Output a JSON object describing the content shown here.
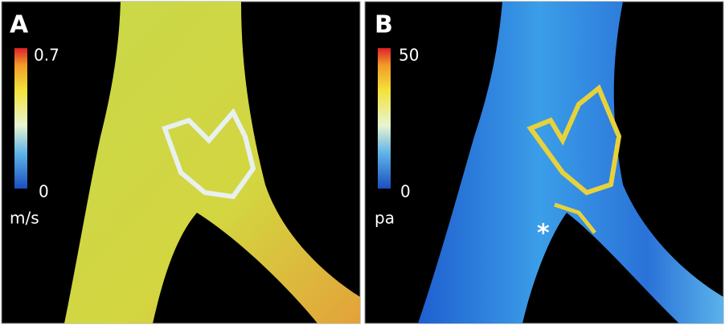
{
  "panels": [
    {
      "label": "A",
      "colorbar": {
        "max": "0.7",
        "min": "0",
        "unit": "m/s"
      }
    },
    {
      "label": "B",
      "colorbar": {
        "max": "50",
        "min": "0",
        "unit": "pa"
      },
      "annotation": "*"
    }
  ]
}
